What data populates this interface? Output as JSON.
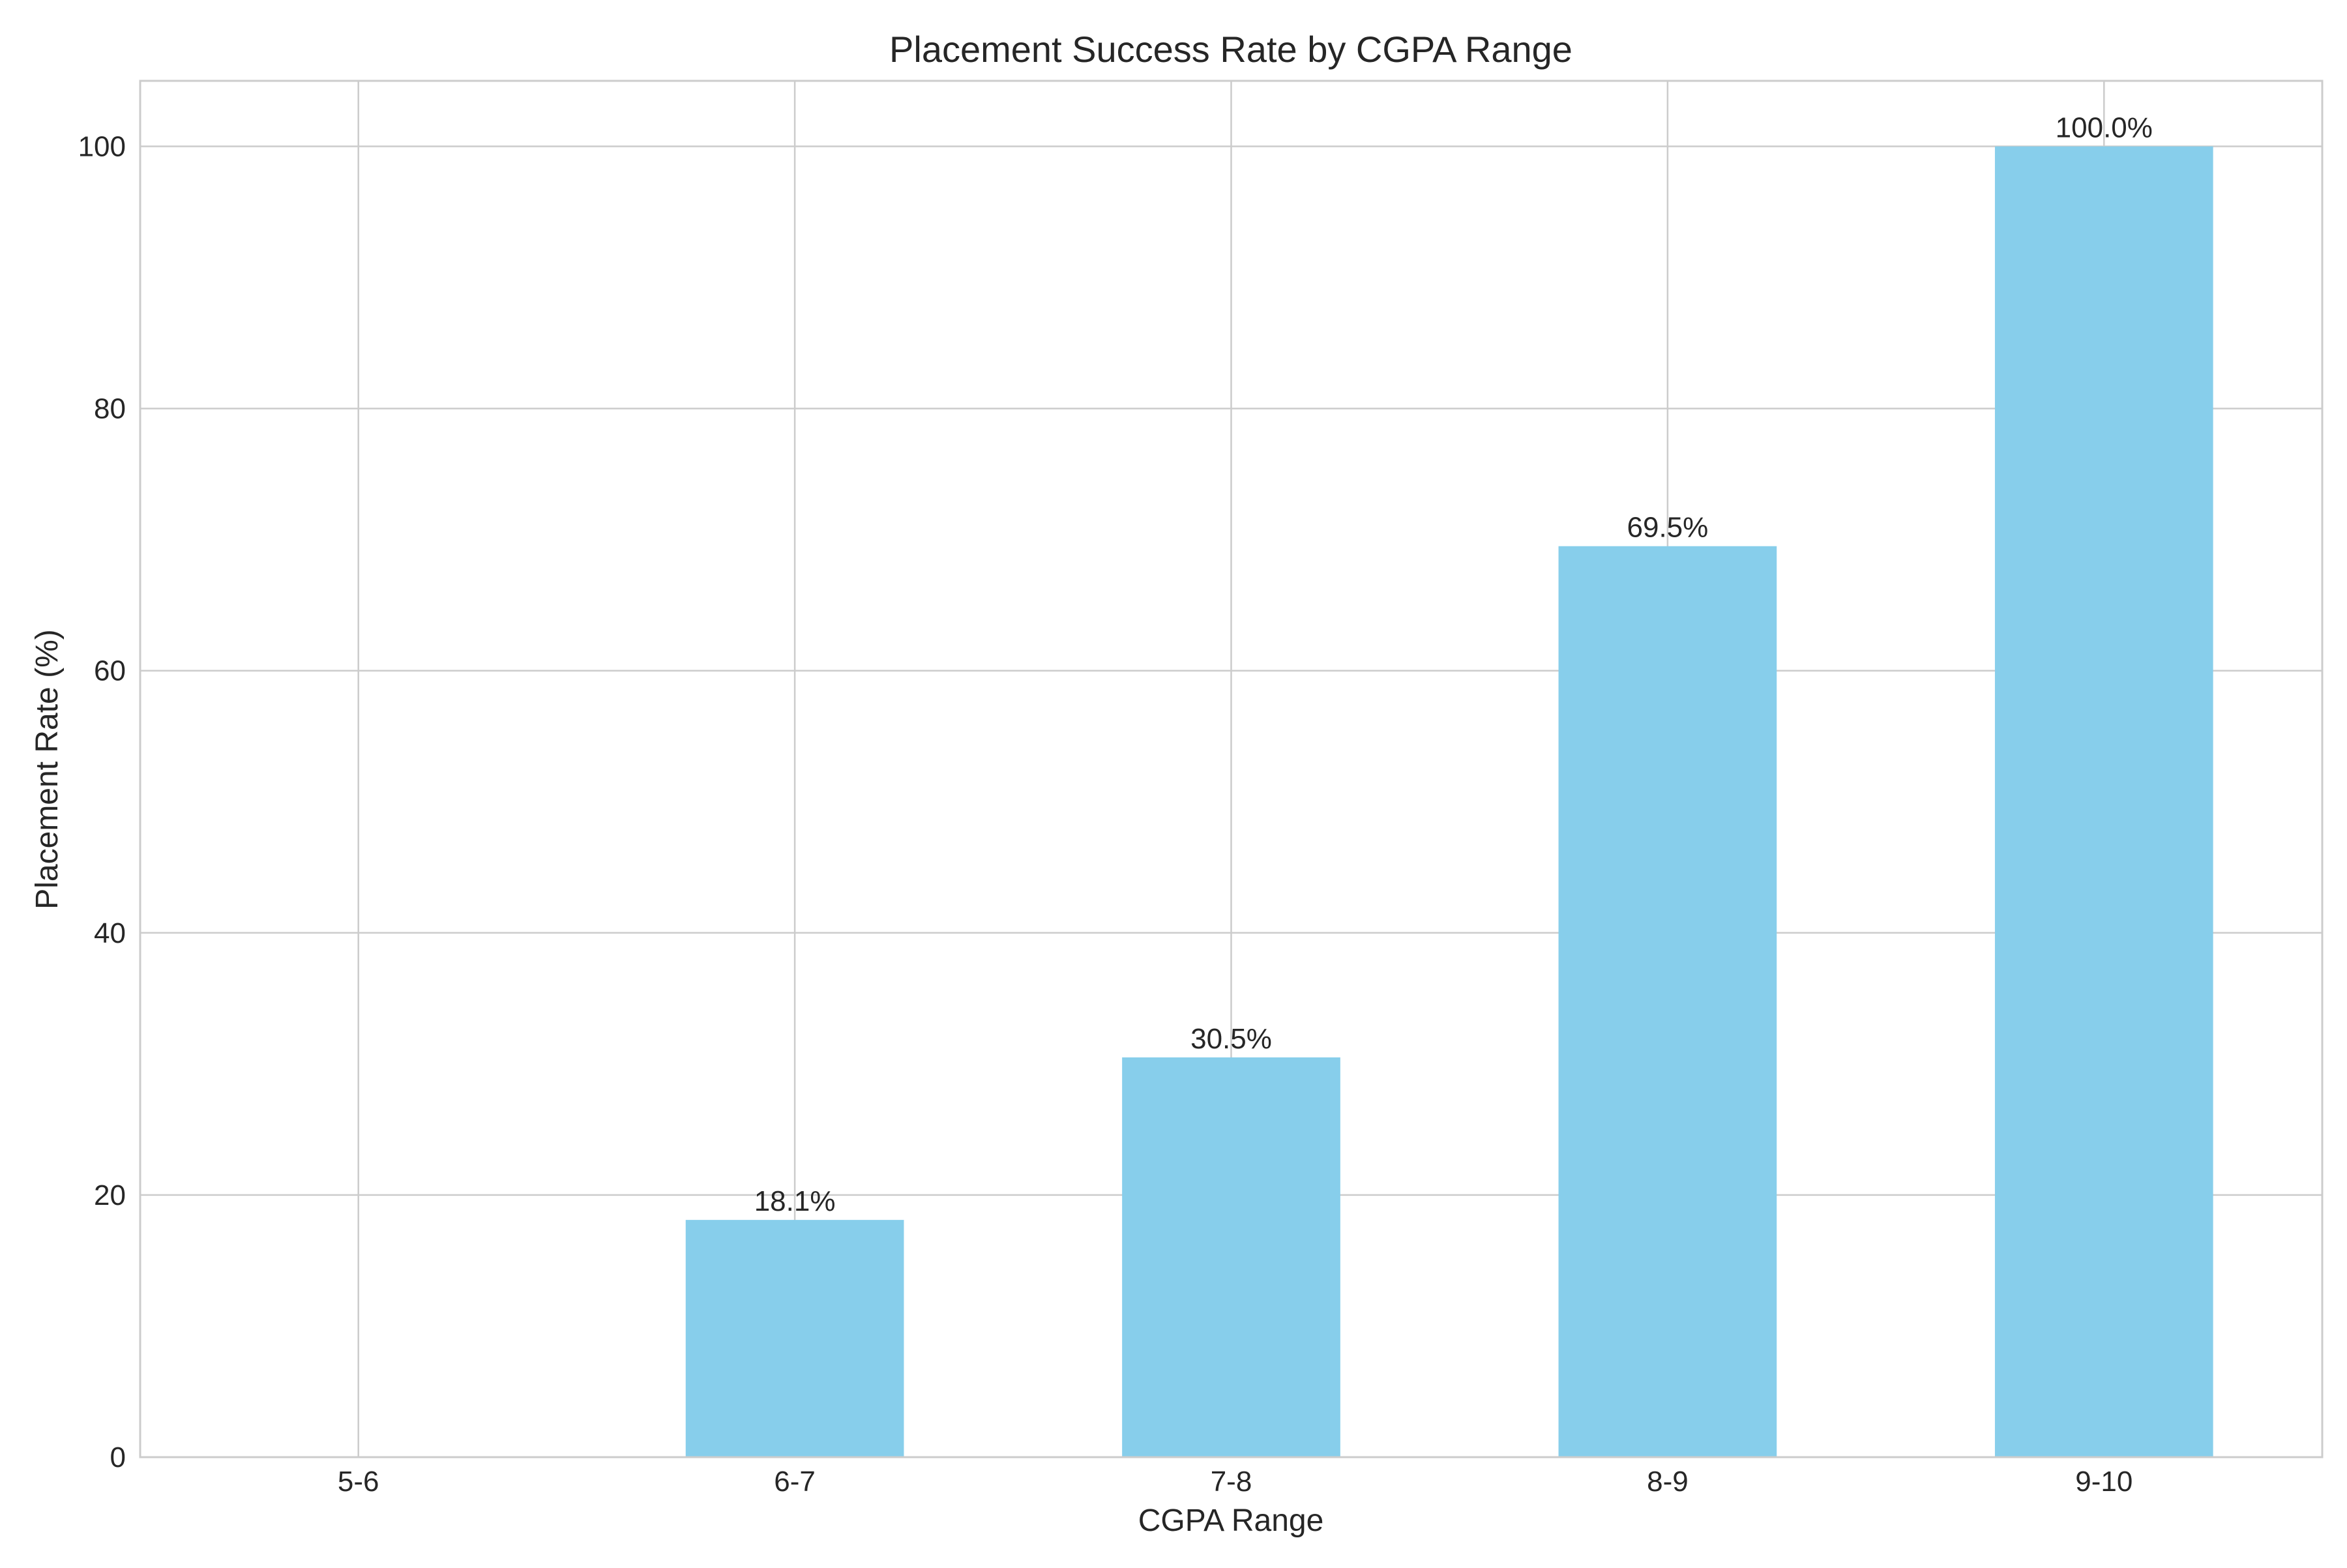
{
  "chart_data": {
    "type": "bar",
    "title": "Placement Success Rate by CGPA Range",
    "xlabel": "CGPA Range",
    "ylabel": "Placement Rate (%)",
    "categories": [
      "5-6",
      "6-7",
      "7-8",
      "8-9",
      "9-10"
    ],
    "values": [
      0,
      18.1,
      30.5,
      69.5,
      100.0
    ],
    "data_labels": [
      "",
      "18.1%",
      "30.5%",
      "69.5%",
      "100.0%"
    ],
    "ylim": [
      0,
      105
    ],
    "yticks": [
      0,
      20,
      40,
      60,
      80,
      100
    ],
    "grid": true,
    "bar_color": "#87ceeb"
  }
}
